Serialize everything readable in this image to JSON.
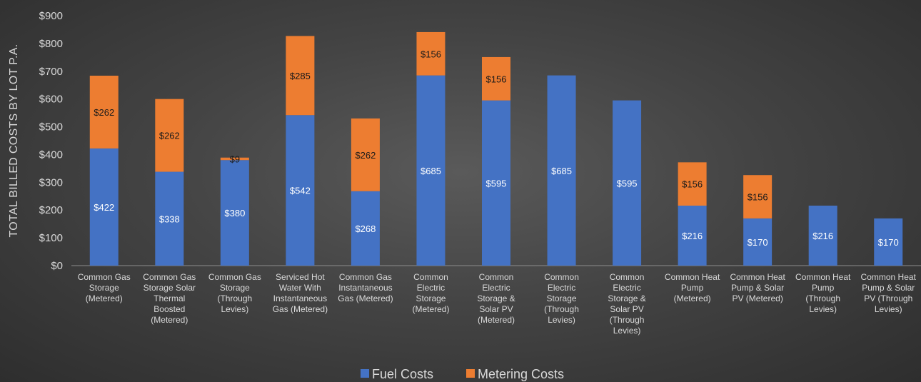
{
  "chart_data": {
    "type": "bar",
    "stacked": true,
    "ylabel": "TOTAL BILLED COSTS BY LOT P.A.",
    "ylim": [
      0,
      900
    ],
    "ytick_labels": [
      "$0",
      "$100",
      "$200",
      "$300",
      "$400",
      "$500",
      "$600",
      "$700",
      "$800",
      "$900"
    ],
    "ytick_values": [
      0,
      100,
      200,
      300,
      400,
      500,
      600,
      700,
      800,
      900
    ],
    "categories": [
      [
        "Common Gas",
        "Storage",
        "(Metered)"
      ],
      [
        "Common Gas",
        "Storage Solar",
        "Thermal",
        "Boosted",
        "(Metered)"
      ],
      [
        "Common Gas",
        "Storage",
        "(Through",
        "Levies)"
      ],
      [
        "Serviced Hot",
        "Water With",
        "Instantaneous",
        "Gas (Metered)"
      ],
      [
        "Common Gas",
        "Instantaneous",
        "Gas (Metered)"
      ],
      [
        "Common",
        "Electric",
        "Storage",
        "(Metered)"
      ],
      [
        "Common",
        "Electric",
        "Storage &",
        "Solar PV",
        "(Metered)"
      ],
      [
        "Common",
        "Electric",
        "Storage",
        "(Through",
        "Levies)"
      ],
      [
        "Common",
        "Electric",
        "Storage &",
        "Solar PV",
        "(Through",
        "Levies)"
      ],
      [
        "Common Heat",
        "Pump",
        "(Metered)"
      ],
      [
        "Common Heat",
        "Pump & Solar",
        "PV (Metered)"
      ],
      [
        "Common Heat",
        "Pump",
        "(Through",
        "Levies)"
      ],
      [
        "Common Heat",
        "Pump & Solar",
        "PV (Through",
        "Levies)"
      ]
    ],
    "series": [
      {
        "name": "Fuel Costs",
        "color": "#4472c4",
        "values": [
          422,
          338,
          380,
          542,
          268,
          685,
          595,
          685,
          595,
          216,
          170,
          216,
          170
        ],
        "labels": [
          "$422",
          "$338",
          "$380",
          "$542",
          "$268",
          "$685",
          "$595",
          "$685",
          "$595",
          "$216",
          "$170",
          "$216",
          "$170"
        ]
      },
      {
        "name": "Metering Costs",
        "color": "#ed7d31",
        "values": [
          262,
          262,
          9,
          285,
          262,
          156,
          156,
          0,
          0,
          156,
          156,
          0,
          0
        ],
        "labels": [
          "$262",
          "$262",
          "$9",
          "$285",
          "$262",
          "$156",
          "$156",
          "",
          "",
          "$156",
          "$156",
          "",
          ""
        ]
      }
    ],
    "legend": "bottom",
    "grid": false
  }
}
